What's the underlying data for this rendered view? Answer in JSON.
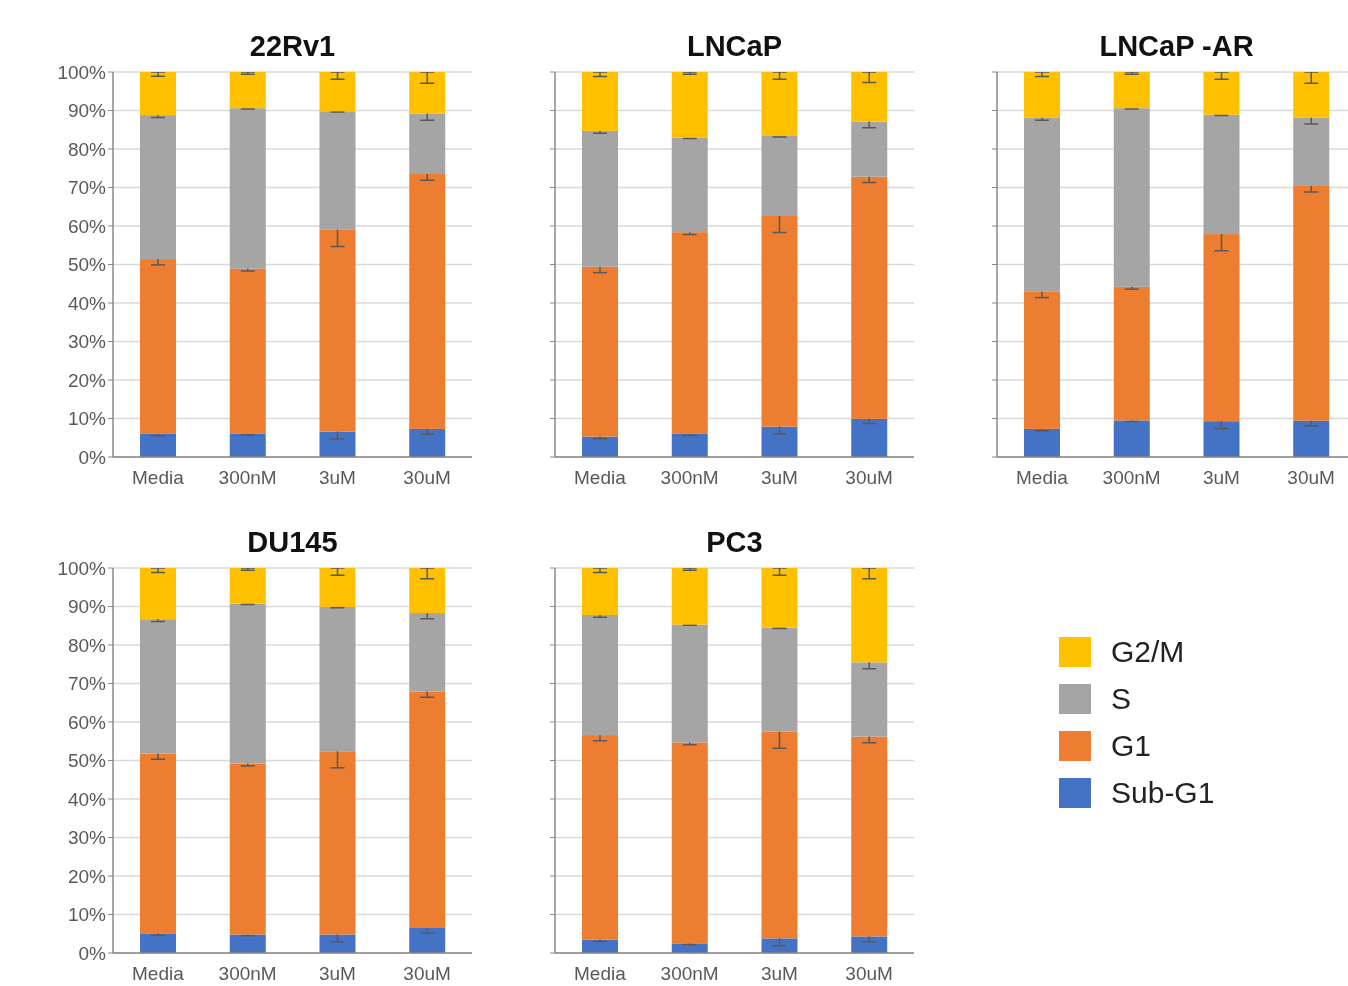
{
  "chart_data": [
    {
      "type": "bar",
      "title": "22Rv1",
      "categories": [
        "Media",
        "300nM",
        "3uM",
        "30uM"
      ],
      "stacked": true,
      "ylim": [
        0,
        100
      ],
      "yticks": [
        {
          "value": 0,
          "label": "0%"
        },
        {
          "value": 10,
          "label": "10%"
        },
        {
          "value": 20,
          "label": "20%"
        },
        {
          "value": 30,
          "label": "30%"
        },
        {
          "value": 40,
          "label": "40%"
        },
        {
          "value": 50,
          "label": "50%"
        },
        {
          "value": 60,
          "label": "60%"
        },
        {
          "value": 70,
          "label": "70%"
        },
        {
          "value": 80,
          "label": "80%"
        },
        {
          "value": 90,
          "label": "90%"
        },
        {
          "value": 100,
          "label": "100%"
        }
      ],
      "grid": "y",
      "legend": false,
      "series": [
        {
          "color": "#4472c4",
          "values": [
            6.0,
            6.0,
            6.6,
            7.3
          ],
          "errors": [
            0.5,
            0.3,
            1.9,
            1.4
          ]
        },
        {
          "color": "#ed7d31",
          "values": [
            45.4,
            42.9,
            52.4,
            66.2
          ],
          "errors": [
            1.5,
            0.6,
            4.3,
            1.6
          ]
        },
        {
          "color": "#a5a5a5",
          "values": [
            37.4,
            41.7,
            30.8,
            15.7
          ],
          "errors": [
            0.6,
            0.2,
            0.2,
            1.7
          ]
        },
        {
          "color": "#ffc000",
          "values": [
            11.2,
            9.4,
            10.2,
            10.8
          ],
          "errors": [
            [
              98.9,
              100
            ],
            [
              99.4,
              100
            ],
            [
              98.1,
              100
            ],
            [
              97.1,
              100
            ]
          ]
        }
      ]
    },
    {
      "type": "bar",
      "title": "LNCaP",
      "categories": [
        "Media",
        "300nM",
        "3uM",
        "30uM"
      ],
      "stacked": true,
      "ylim": [
        0,
        100
      ],
      "yticks": [
        {
          "value": 0,
          "label": null
        },
        {
          "value": 10,
          "label": null
        },
        {
          "value": 20,
          "label": null
        },
        {
          "value": 30,
          "label": null
        },
        {
          "value": 40,
          "label": null
        },
        {
          "value": 50,
          "label": null
        },
        {
          "value": 60,
          "label": null
        },
        {
          "value": 70,
          "label": null
        },
        {
          "value": 80,
          "label": null
        },
        {
          "value": 90,
          "label": null
        },
        {
          "value": 100,
          "label": null
        }
      ],
      "tick_labels": "x",
      "grid": "y",
      "legend": false,
      "series": [
        {
          "color": "#4472c4",
          "values": [
            5.3,
            6.0,
            7.9,
            9.9
          ],
          "errors": [
            0.5,
            0.4,
            1.9,
            1.2
          ]
        },
        {
          "color": "#ed7d31",
          "values": [
            44.1,
            52.4,
            54.7,
            62.9
          ],
          "errors": [
            1.5,
            0.6,
            4.3,
            1.5
          ]
        },
        {
          "color": "#a5a5a5",
          "values": [
            35.3,
            24.5,
            20.8,
            14.3
          ],
          "errors": [
            0.6,
            0.2,
            0.3,
            1.6
          ]
        },
        {
          "color": "#ffc000",
          "values": [
            15.3,
            17.1,
            16.6,
            12.9
          ],
          "errors": [
            [
              98.8,
              100
            ],
            [
              99.4,
              100
            ],
            [
              98.1,
              100
            ],
            [
              97.3,
              100
            ]
          ]
        }
      ]
    },
    {
      "type": "bar",
      "title": "LNCaP -AR",
      "categories": [
        "Media",
        "300nM",
        "3uM",
        "30uM"
      ],
      "stacked": true,
      "ylim": [
        0,
        100
      ],
      "yticks": [
        {
          "value": 0,
          "label": null
        },
        {
          "value": 10,
          "label": null
        },
        {
          "value": 20,
          "label": null
        },
        {
          "value": 30,
          "label": null
        },
        {
          "value": 40,
          "label": null
        },
        {
          "value": 50,
          "label": null
        },
        {
          "value": 60,
          "label": null
        },
        {
          "value": 70,
          "label": null
        },
        {
          "value": 80,
          "label": null
        },
        {
          "value": 90,
          "label": null
        },
        {
          "value": 100,
          "label": null
        }
      ],
      "tick_labels": "x",
      "grid": "y",
      "legend": false,
      "series": [
        {
          "color": "#4472c4",
          "values": [
            7.3,
            9.5,
            9.3,
            9.4
          ],
          "errors": [
            0.5,
            0.3,
            1.9,
            1.3
          ]
        },
        {
          "color": "#ed7d31",
          "values": [
            35.6,
            34.7,
            48.6,
            61.0
          ],
          "errors": [
            1.5,
            0.6,
            4.3,
            1.6
          ]
        },
        {
          "color": "#a5a5a5",
          "values": [
            45.2,
            46.4,
            31.0,
            17.7
          ],
          "errors": [
            0.6,
            0.2,
            0.2,
            1.6
          ]
        },
        {
          "color": "#ffc000",
          "values": [
            11.9,
            9.4,
            11.1,
            11.9
          ],
          "errors": [
            [
              98.8,
              100
            ],
            [
              99.4,
              100
            ],
            [
              98.1,
              100
            ],
            [
              97.1,
              100
            ]
          ]
        }
      ]
    },
    {
      "type": "bar",
      "title": "DU145",
      "categories": [
        "Media",
        "300nM",
        "3uM",
        "30uM"
      ],
      "stacked": true,
      "ylim": [
        0,
        100
      ],
      "yticks": [
        {
          "value": 0,
          "label": "0%"
        },
        {
          "value": 10,
          "label": "10%"
        },
        {
          "value": 20,
          "label": "20%"
        },
        {
          "value": 30,
          "label": "30%"
        },
        {
          "value": 40,
          "label": "40%"
        },
        {
          "value": 50,
          "label": "50%"
        },
        {
          "value": 60,
          "label": "60%"
        },
        {
          "value": 70,
          "label": "70%"
        },
        {
          "value": 80,
          "label": "80%"
        },
        {
          "value": 90,
          "label": "90%"
        },
        {
          "value": 100,
          "label": "100%"
        }
      ],
      "grid": "y",
      "legend": false,
      "series": [
        {
          "color": "#4472c4",
          "values": [
            5.1,
            4.8,
            4.8,
            6.5
          ],
          "errors": [
            0.5,
            0.3,
            1.9,
            1.4
          ]
        },
        {
          "color": "#ed7d31",
          "values": [
            46.7,
            44.4,
            47.6,
            61.4
          ],
          "errors": [
            1.5,
            0.6,
            4.3,
            1.5
          ]
        },
        {
          "color": "#a5a5a5",
          "values": [
            34.9,
            41.5,
            37.5,
            20.4
          ],
          "errors": [
            0.6,
            0.2,
            0.2,
            1.5
          ]
        },
        {
          "color": "#ffc000",
          "values": [
            13.3,
            9.3,
            10.1,
            11.7
          ],
          "errors": [
            [
              98.8,
              100
            ],
            [
              99.4,
              100
            ],
            [
              98.1,
              100
            ],
            [
              97.2,
              100
            ]
          ]
        }
      ]
    },
    {
      "type": "bar",
      "title": "PC3",
      "categories": [
        "Media",
        "300nM",
        "3uM",
        "30uM"
      ],
      "stacked": true,
      "ylim": [
        0,
        100
      ],
      "yticks": [
        {
          "value": 0,
          "label": null
        },
        {
          "value": 10,
          "label": null
        },
        {
          "value": 20,
          "label": null
        },
        {
          "value": 30,
          "label": null
        },
        {
          "value": 40,
          "label": null
        },
        {
          "value": 50,
          "label": null
        },
        {
          "value": 60,
          "label": null
        },
        {
          "value": 70,
          "label": null
        },
        {
          "value": 80,
          "label": null
        },
        {
          "value": 90,
          "label": null
        },
        {
          "value": 100,
          "label": null
        }
      ],
      "tick_labels": "x",
      "grid": "y",
      "legend": "right",
      "series": [
        {
          "name": "Sub-G1",
          "color": "#4472c4",
          "values": [
            3.5,
            2.5,
            3.8,
            4.3
          ],
          "errors": [
            0.5,
            0.3,
            1.9,
            1.4
          ]
        },
        {
          "name": "G1",
          "color": "#ed7d31",
          "values": [
            53.1,
            52.2,
            53.7,
            51.9
          ],
          "errors": [
            1.5,
            0.6,
            4.3,
            1.6
          ]
        },
        {
          "name": "S",
          "color": "#a5a5a5",
          "values": [
            31.2,
            30.6,
            27.0,
            19.3
          ],
          "errors": [
            0.6,
            0.2,
            0.2,
            1.7
          ]
        },
        {
          "name": "G2/M",
          "color": "#ffc000",
          "values": [
            12.2,
            14.7,
            15.5,
            24.5
          ],
          "errors": [
            [
              98.8,
              100
            ],
            [
              99.4,
              100
            ],
            [
              98.1,
              100
            ],
            [
              97.2,
              100
            ]
          ]
        }
      ]
    }
  ]
}
